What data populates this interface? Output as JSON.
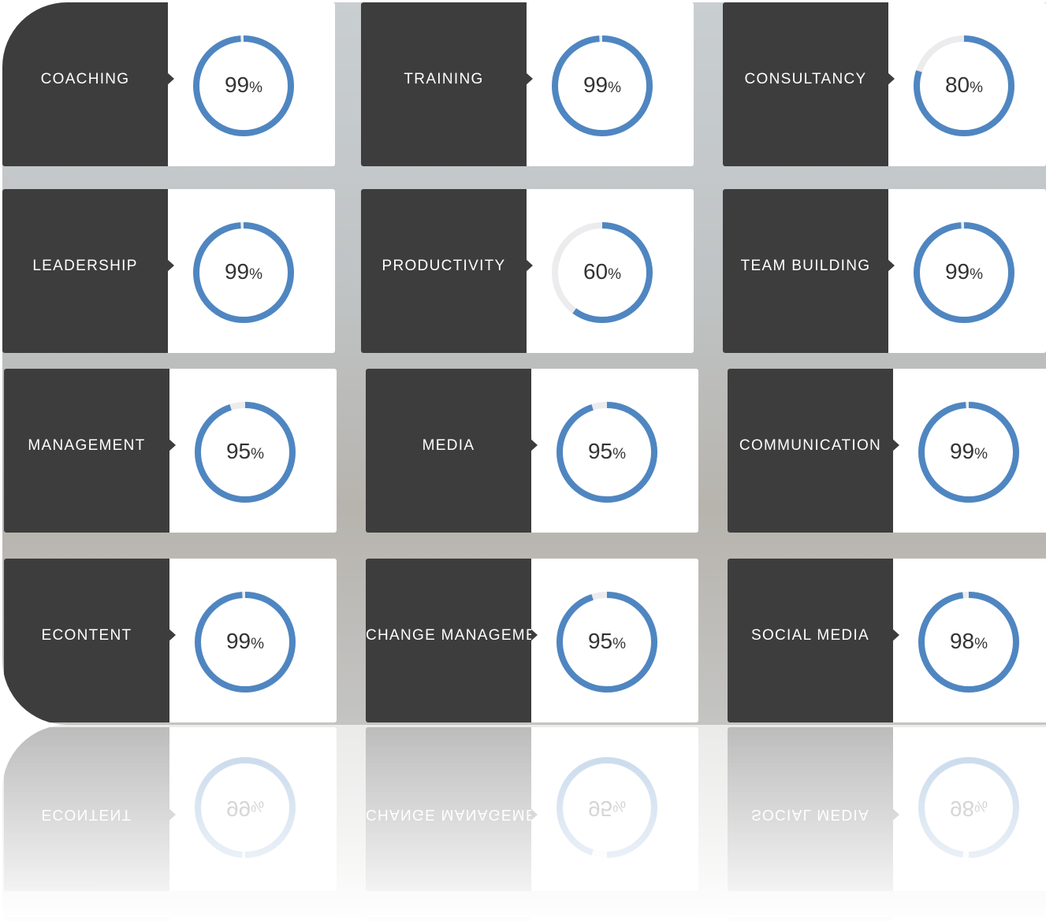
{
  "cards": [
    {
      "label": "COACHING",
      "value": 99,
      "unit": "%"
    },
    {
      "label": "TRAINING",
      "value": 99,
      "unit": "%"
    },
    {
      "label": "CONSULTANCY",
      "value": 80,
      "unit": "%"
    },
    {
      "label": "LEADERSHIP",
      "value": 99,
      "unit": "%"
    },
    {
      "label": "PRODUCTIVITY",
      "value": 60,
      "unit": "%"
    },
    {
      "label": "TEAM BUILDING",
      "value": 99,
      "unit": "%"
    },
    {
      "label": "MANAGEMENT",
      "value": 95,
      "unit": "%"
    },
    {
      "label": "MEDIA",
      "value": 95,
      "unit": "%"
    },
    {
      "label": "COMMUNICATION",
      "value": 99,
      "unit": "%"
    },
    {
      "label": "ECONTENT",
      "value": 99,
      "unit": "%"
    },
    {
      "label": "CHANGE MANAGEMENT",
      "value": 95,
      "unit": "%"
    },
    {
      "label": "SOCIAL MEDIA",
      "value": 98,
      "unit": "%"
    }
  ]
}
